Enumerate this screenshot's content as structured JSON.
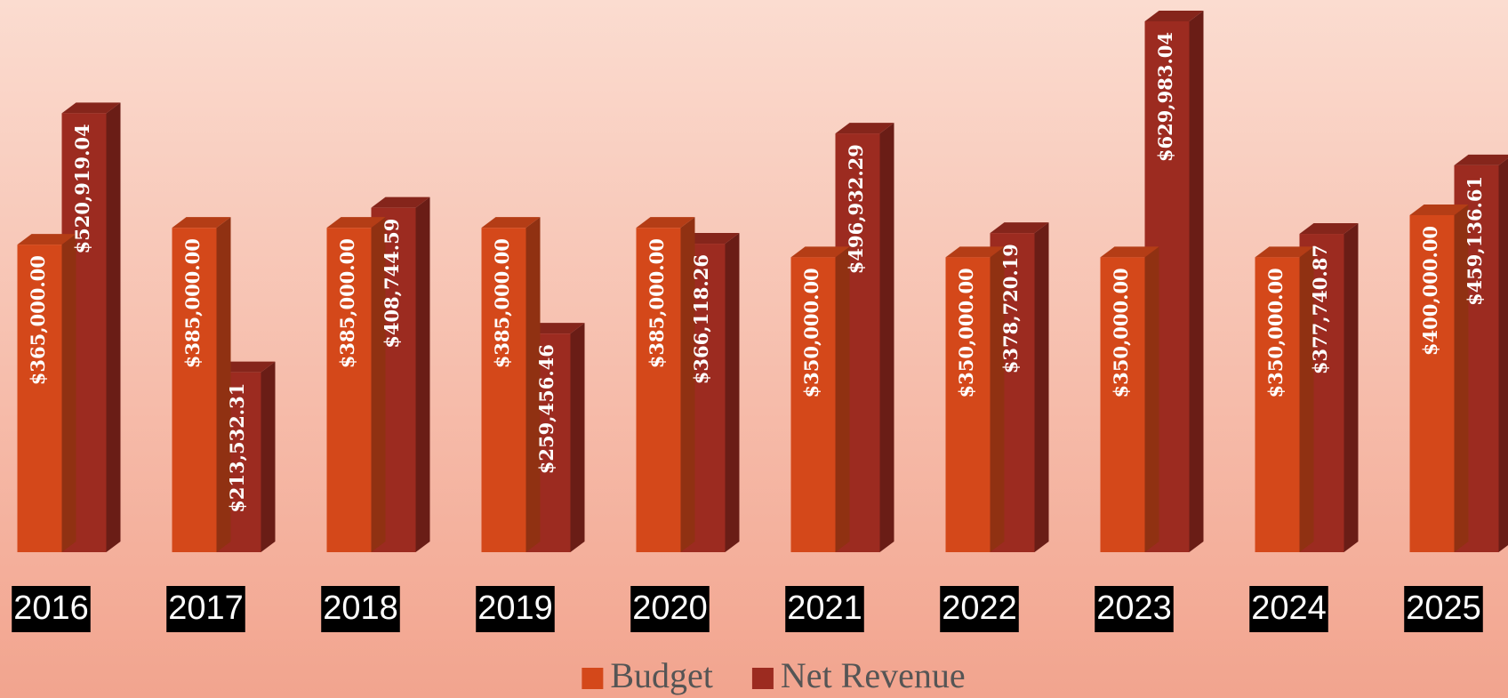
{
  "chart_data": {
    "type": "bar3d",
    "categories": [
      "2016",
      "2017",
      "2018",
      "2019",
      "2020",
      "2021",
      "2022",
      "2023",
      "2024",
      "2025"
    ],
    "series": [
      {
        "name": "Budget",
        "color": "#d4481a",
        "values": [
          365000,
          385000,
          385000,
          385000,
          385000,
          350000,
          350000,
          350000,
          350000,
          400000
        ],
        "value_labels": [
          "$365,000.00",
          "$385,000.00",
          "$385,000.00",
          "$385,000.00",
          "$385,000.00",
          "$350,000.00",
          "$350,000.00",
          "$350,000.00",
          "$350,000.00",
          "$400,000.00"
        ]
      },
      {
        "name": "Net Revenue",
        "color": "#9c2b20",
        "values": [
          520919.04,
          213532.31,
          408744.59,
          259456.46,
          366118.26,
          496932.29,
          378720.19,
          629983.04,
          377740.87,
          459136.61
        ],
        "value_labels": [
          "$520,919.04",
          "$213,532.31",
          "$408,744.59",
          "$259,456.46",
          "$366,118.26",
          "$496,932.29",
          "$378,720.19",
          "$629,983.04",
          "$377,740.87",
          "$459,136.61"
        ]
      }
    ],
    "legend": "bottom"
  }
}
